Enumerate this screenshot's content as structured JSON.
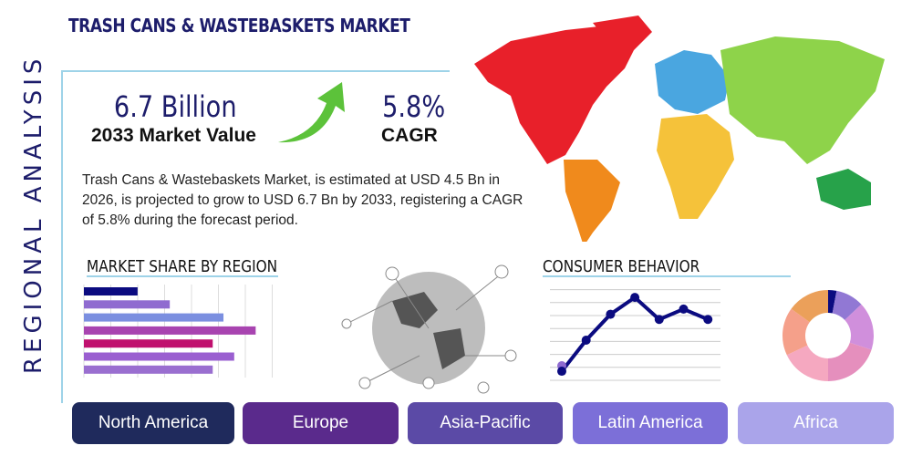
{
  "title": "TRASH CANS & WASTEBASKETS MARKET",
  "side_title": "REGIONAL ANALYSIS",
  "kpis": {
    "market_value": "6.7 Billion",
    "market_value_label": "2033 Market Value",
    "cagr": "5.8%",
    "cagr_label": "CAGR"
  },
  "description": "Trash Cans & Wastebaskets Market, is estimated at USD 4.5 Bn in 2026, is projected to grow to USD 6.7 Bn by 2033, registering a CAGR of 5.8% during the forecast period.",
  "sections": {
    "market_share": "MARKET SHARE BY REGION",
    "consumer": "CONSUMER BEHAVIOR"
  },
  "tabs": [
    {
      "label": "North America",
      "color": "#1f2a5c"
    },
    {
      "label": "Europe",
      "color": "#5a2a8c"
    },
    {
      "label": "Asia-Pacific",
      "color": "#5b4aa6"
    },
    {
      "label": "Latin America",
      "color": "#7c6fd8"
    },
    {
      "label": "Africa",
      "color": "#aaa4ea"
    }
  ],
  "chart_data": [
    {
      "type": "bar",
      "orientation": "horizontal",
      "values": [
        2,
        3.2,
        5.2,
        6.4,
        4.8,
        5.6,
        4.8
      ],
      "colors": [
        "#0b0b80",
        "#8f6bd0",
        "#7b8fe0",
        "#a844b0",
        "#c0106e",
        "#9a5fd0",
        "#9a6fd0"
      ],
      "xlim": [
        0,
        7
      ],
      "grid": true
    },
    {
      "type": "line",
      "values": [
        0.7,
        3.1,
        5.1,
        6.4,
        4.7,
        5.5,
        4.7
      ],
      "ylim": [
        0,
        7
      ],
      "grid": true,
      "color": "#0b0b80"
    },
    {
      "type": "pie",
      "donut": true,
      "values": [
        3,
        10,
        17,
        20,
        18,
        17,
        15
      ],
      "colors": [
        "#0b0b80",
        "#9178d4",
        "#d08fdc",
        "#e58fbd",
        "#f5a8c0",
        "#f5a08a",
        "#eba05a"
      ]
    }
  ]
}
